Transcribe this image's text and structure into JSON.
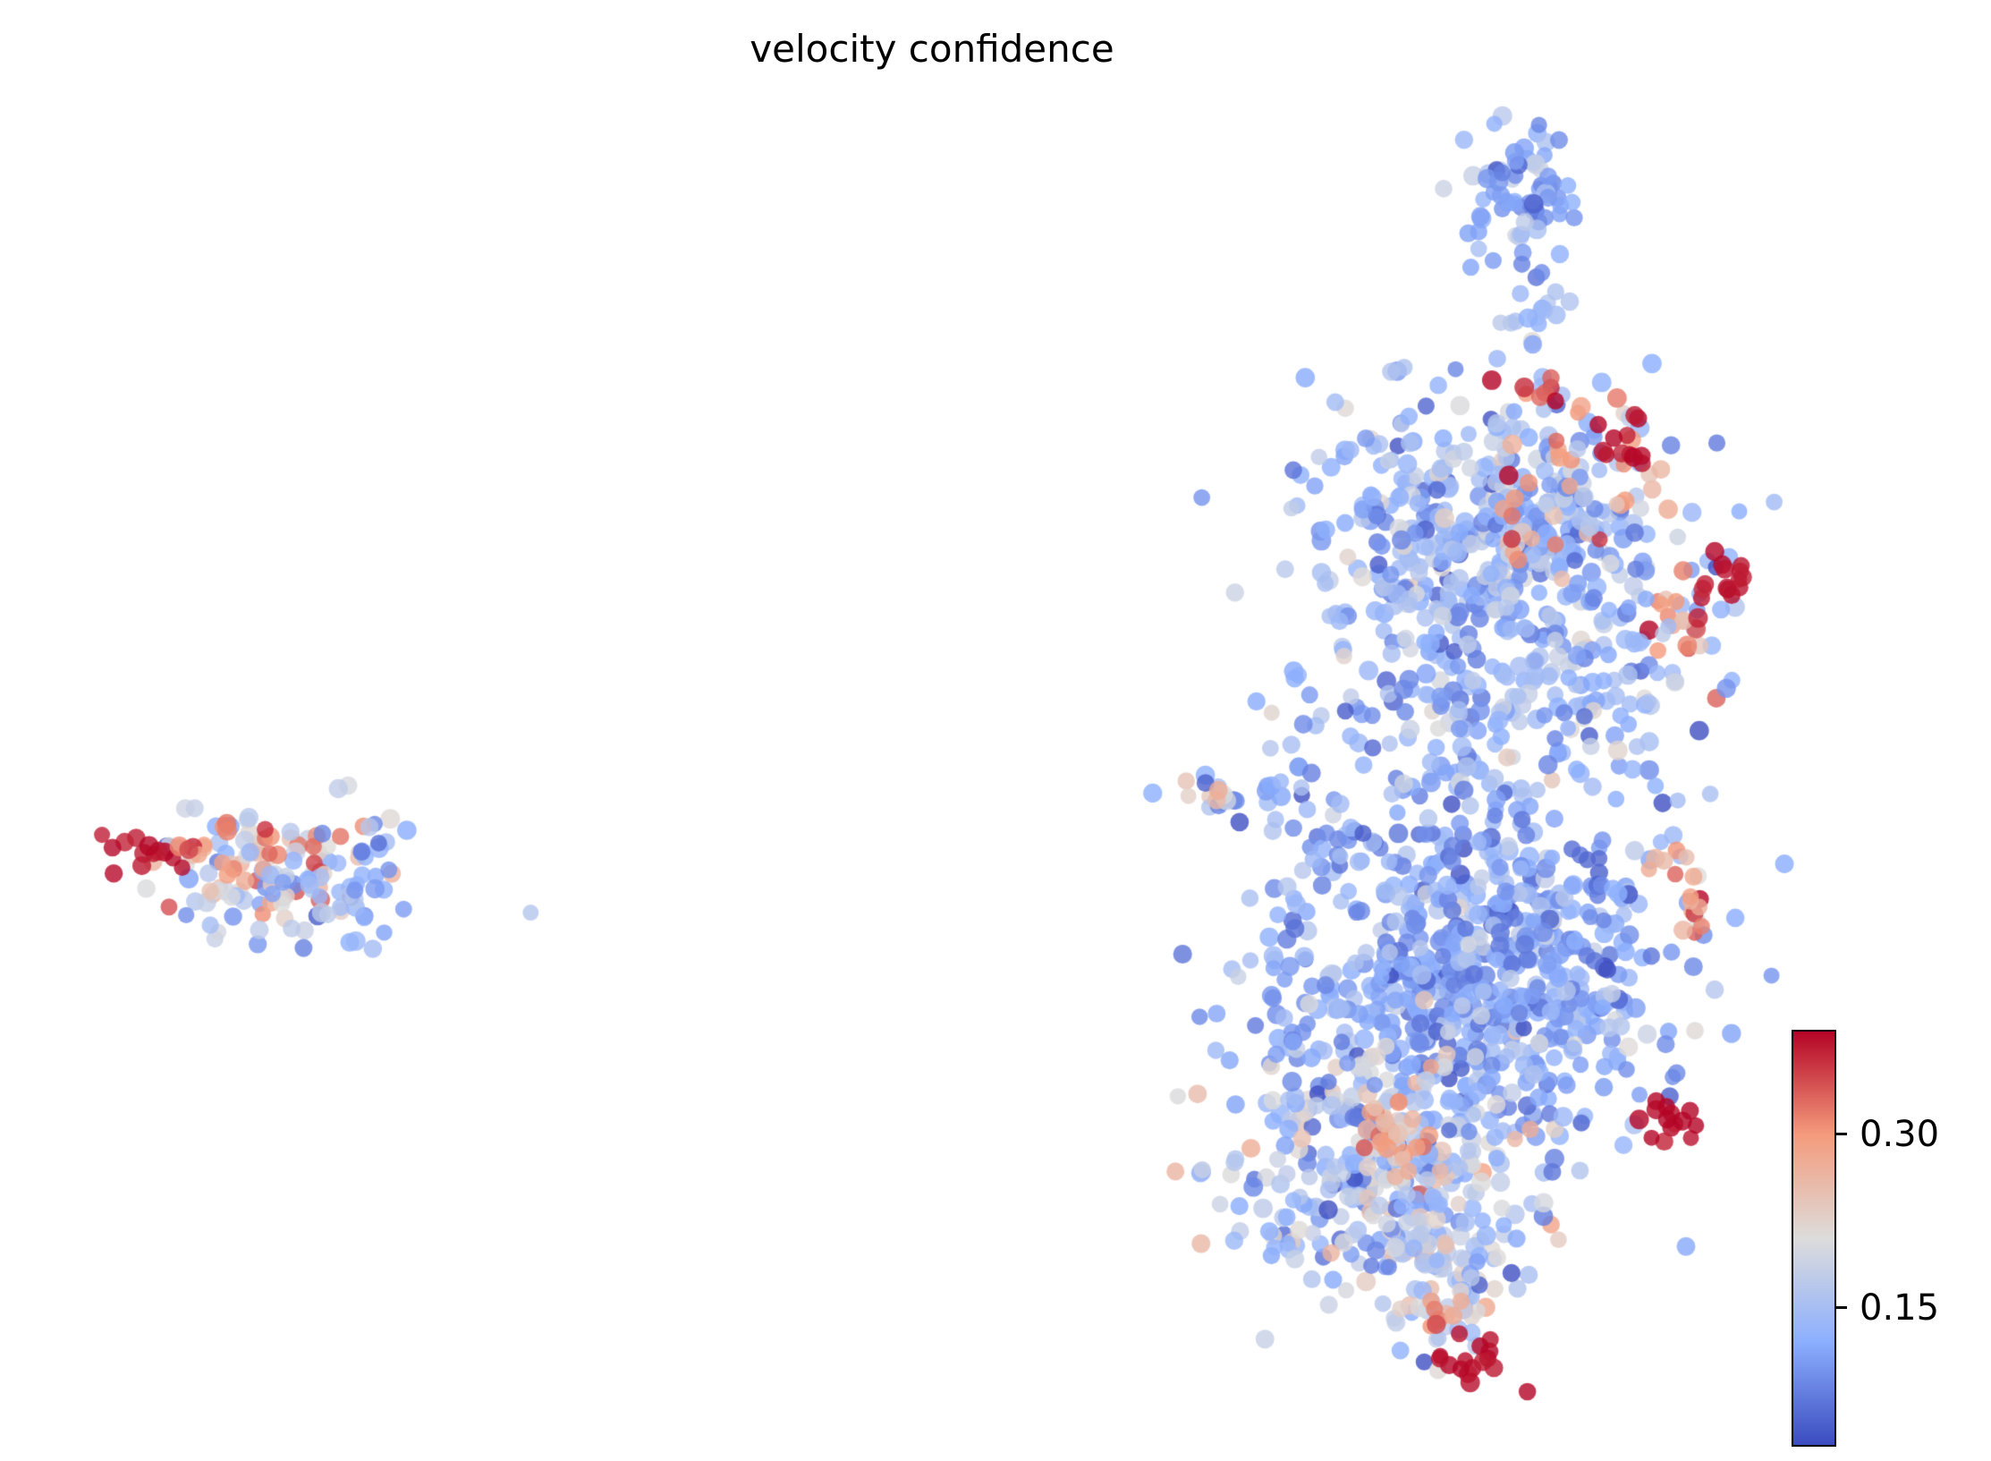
{
  "chart_data": {
    "type": "scatter",
    "title": "velocity confidence",
    "subtitle": "",
    "xlabel": "",
    "ylabel": "",
    "axes_visible": false,
    "grid": false,
    "color_metric": "velocity confidence",
    "colormap": {
      "name": "coolwarm",
      "stops": [
        {
          "t": 0.0,
          "color": "#3b4cc0"
        },
        {
          "t": 0.25,
          "color": "#8caffe"
        },
        {
          "t": 0.5,
          "color": "#dddcdb"
        },
        {
          "t": 0.75,
          "color": "#f49b7c"
        },
        {
          "t": 1.0,
          "color": "#b40426"
        }
      ]
    },
    "value_range": {
      "vmin": 0.03,
      "vmax": 0.39
    },
    "colorbar": {
      "position": "right-bottom",
      "orientation": "vertical",
      "ticks": [
        {
          "value": 0.3,
          "label": "0.30"
        },
        {
          "value": 0.15,
          "label": "0.15"
        }
      ]
    },
    "point_style": {
      "radius_px": 10,
      "alpha": 0.8
    },
    "seed": 42,
    "clusters": [
      {
        "name": "left-blob-main",
        "cx": 0.138,
        "cy": 0.597,
        "sx": 0.03,
        "sy": 0.026,
        "n": 110,
        "v": 0.2,
        "vs": 0.07
      },
      {
        "name": "left-blob-red-edge",
        "cx": 0.071,
        "cy": 0.584,
        "sx": 0.009,
        "sy": 0.007,
        "n": 14,
        "v": 0.385,
        "vs": 0.01
      },
      {
        "name": "left-blob-red-scatter",
        "cx": 0.124,
        "cy": 0.586,
        "sx": 0.021,
        "sy": 0.018,
        "n": 18,
        "v": 0.33,
        "vs": 0.04
      },
      {
        "name": "left-blob-blue-east",
        "cx": 0.176,
        "cy": 0.602,
        "sx": 0.017,
        "sy": 0.019,
        "n": 30,
        "v": 0.13,
        "vs": 0.04
      },
      {
        "name": "top-spike",
        "cx": 0.763,
        "cy": 0.128,
        "sx": 0.013,
        "sy": 0.028,
        "n": 70,
        "v": 0.12,
        "vs": 0.035
      },
      {
        "name": "neck",
        "cx": 0.768,
        "cy": 0.205,
        "sx": 0.01,
        "sy": 0.018,
        "n": 18,
        "v": 0.13,
        "vs": 0.03
      },
      {
        "name": "upper-blob",
        "cx": 0.748,
        "cy": 0.375,
        "sx": 0.047,
        "sy": 0.053,
        "n": 520,
        "v": 0.135,
        "vs": 0.045
      },
      {
        "name": "upper-blob-salmon",
        "cx": 0.79,
        "cy": 0.345,
        "sx": 0.028,
        "sy": 0.038,
        "n": 40,
        "v": 0.27,
        "vs": 0.06
      },
      {
        "name": "red-arc",
        "cx": 0.778,
        "cy": 0.272,
        "sx": 0.016,
        "sy": 0.007,
        "n": 10,
        "v": 0.36,
        "vs": 0.03
      },
      {
        "name": "red-clump-upper",
        "cx": 0.812,
        "cy": 0.299,
        "sx": 0.007,
        "sy": 0.011,
        "n": 12,
        "v": 0.385,
        "vs": 0.008
      },
      {
        "name": "red-clump-right",
        "cx": 0.864,
        "cy": 0.396,
        "sx": 0.007,
        "sy": 0.011,
        "n": 14,
        "v": 0.385,
        "vs": 0.008
      },
      {
        "name": "salmon-trail-right",
        "cx": 0.846,
        "cy": 0.432,
        "sx": 0.011,
        "sy": 0.018,
        "n": 16,
        "v": 0.3,
        "vs": 0.05
      },
      {
        "name": "mid-sparse",
        "cx": 0.76,
        "cy": 0.51,
        "sx": 0.052,
        "sy": 0.033,
        "n": 130,
        "v": 0.13,
        "vs": 0.04
      },
      {
        "name": "left-arm",
        "cx": 0.627,
        "cy": 0.545,
        "sx": 0.022,
        "sy": 0.009,
        "n": 24,
        "v": 0.13,
        "vs": 0.05
      },
      {
        "name": "left-arm-gray-tip",
        "cx": 0.607,
        "cy": 0.539,
        "sx": 0.006,
        "sy": 0.006,
        "n": 5,
        "v": 0.22,
        "vs": 0.03
      },
      {
        "name": "arm-dark-clump",
        "cx": 0.664,
        "cy": 0.588,
        "sx": 0.008,
        "sy": 0.013,
        "n": 12,
        "v": 0.09,
        "vs": 0.02
      },
      {
        "name": "lower-dense-blob",
        "cx": 0.742,
        "cy": 0.665,
        "sx": 0.049,
        "sy": 0.053,
        "n": 650,
        "v": 0.115,
        "vs": 0.035
      },
      {
        "name": "lower-blob-salmon-east",
        "cx": 0.845,
        "cy": 0.617,
        "sx": 0.011,
        "sy": 0.016,
        "n": 18,
        "v": 0.3,
        "vs": 0.05
      },
      {
        "name": "bottom-left-blob",
        "cx": 0.695,
        "cy": 0.8,
        "sx": 0.043,
        "sy": 0.043,
        "n": 330,
        "v": 0.17,
        "vs": 0.06
      },
      {
        "name": "orange-patch",
        "cx": 0.7,
        "cy": 0.776,
        "sx": 0.014,
        "sy": 0.011,
        "n": 25,
        "v": 0.3,
        "vs": 0.04
      },
      {
        "name": "red-clump-lower-right",
        "cx": 0.843,
        "cy": 0.766,
        "sx": 0.008,
        "sy": 0.01,
        "n": 14,
        "v": 0.385,
        "vs": 0.01
      },
      {
        "name": "bottom-tail",
        "cx": 0.728,
        "cy": 0.876,
        "sx": 0.017,
        "sy": 0.026,
        "n": 70,
        "v": 0.16,
        "vs": 0.05
      },
      {
        "name": "bottom-red-clump",
        "cx": 0.737,
        "cy": 0.933,
        "sx": 0.011,
        "sy": 0.009,
        "n": 16,
        "v": 0.385,
        "vs": 0.01
      },
      {
        "name": "bottom-salmon",
        "cx": 0.722,
        "cy": 0.901,
        "sx": 0.007,
        "sy": 0.007,
        "n": 6,
        "v": 0.3,
        "vs": 0.03
      },
      {
        "name": "right-mid-sprinkle",
        "cx": 0.8,
        "cy": 0.462,
        "sx": 0.028,
        "sy": 0.028,
        "n": 40,
        "v": 0.15,
        "vs": 0.05
      },
      {
        "name": "lower-west-sparse",
        "cx": 0.656,
        "cy": 0.7,
        "sx": 0.018,
        "sy": 0.028,
        "n": 30,
        "v": 0.14,
        "vs": 0.04
      }
    ]
  }
}
